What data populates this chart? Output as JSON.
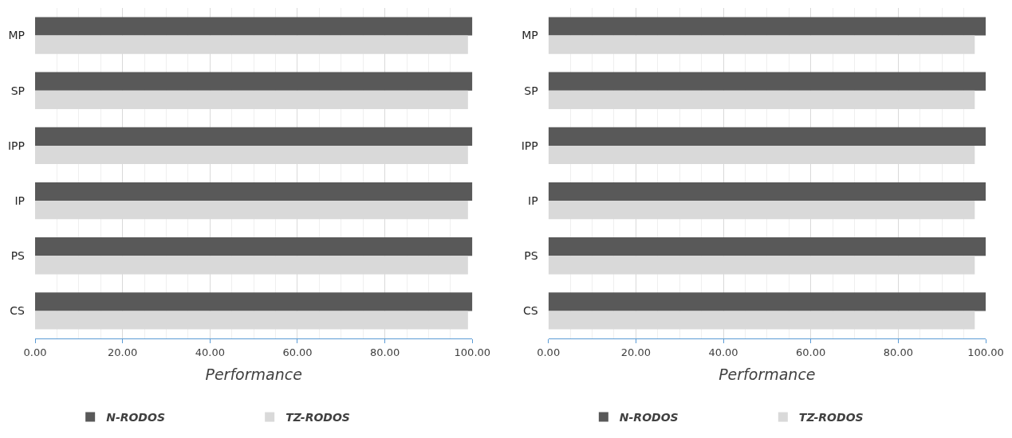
{
  "chart_data": [
    {
      "type": "bar",
      "orientation": "horizontal",
      "xlabel": "Performance",
      "categories": [
        "MP",
        "SP",
        "IPP",
        "IP",
        "PS",
        "CS"
      ],
      "series": [
        {
          "name": "N-RODOS",
          "color": "#595959",
          "values": [
            100,
            100,
            100,
            100,
            100,
            100
          ]
        },
        {
          "name": "TZ-RODOS",
          "color": "#d9d9d9",
          "values": [
            99.0,
            99.0,
            99.0,
            99.0,
            99.0,
            99.0
          ]
        }
      ],
      "xlim": [
        0,
        100
      ],
      "xticks": [
        {
          "value": 0,
          "label": "0.00"
        },
        {
          "value": 20,
          "label": "20.00"
        },
        {
          "value": 40,
          "label": "40.00"
        },
        {
          "value": 60,
          "label": "60.00"
        },
        {
          "value": 80,
          "label": "80.00"
        },
        {
          "value": 100,
          "label": "100.00"
        }
      ],
      "grid": "x",
      "legend": "bottom"
    },
    {
      "type": "bar",
      "orientation": "horizontal",
      "xlabel": "Performance",
      "categories": [
        "MP",
        "SP",
        "IPP",
        "IP",
        "PS",
        "CS"
      ],
      "series": [
        {
          "name": "N-RODOS",
          "color": "#595959",
          "values": [
            100,
            100,
            100,
            100,
            100,
            100
          ]
        },
        {
          "name": "TZ-RODOS",
          "color": "#d9d9d9",
          "values": [
            97.5,
            97.5,
            97.5,
            97.5,
            97.5,
            97.5
          ]
        }
      ],
      "xlim": [
        0,
        100
      ],
      "xticks": [
        {
          "value": 0,
          "label": "0.00"
        },
        {
          "value": 20,
          "label": "20.00"
        },
        {
          "value": 40,
          "label": "40.00"
        },
        {
          "value": 60,
          "label": "60.00"
        },
        {
          "value": 80,
          "label": "80.00"
        },
        {
          "value": 100,
          "label": "100.00"
        }
      ],
      "grid": "x",
      "legend": "bottom"
    }
  ]
}
